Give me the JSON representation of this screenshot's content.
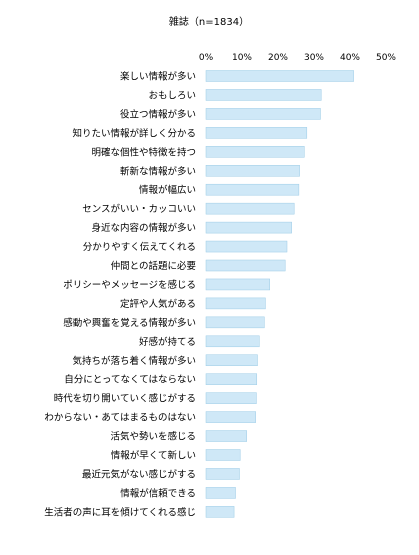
{
  "chart_data": {
    "type": "bar",
    "orientation": "horizontal",
    "title": "雑誌（n=1834）",
    "xlabel": "",
    "ylabel": "",
    "xlim": [
      0,
      50
    ],
    "tick_labels": [
      "0%",
      "10%",
      "20%",
      "30%",
      "40%",
      "50%"
    ],
    "grid": false,
    "legend": "none",
    "bar_color": "#cfe8f7",
    "bar_edge_color": "#9ccbe6",
    "categories": [
      "楽しい情報が多い",
      "おもしろい",
      "役立つ情報が多い",
      "知りたい情報が詳しく分かる",
      "明確な個性や特徴を持つ",
      "斬新な情報が多い",
      "情報が幅広い",
      "センスがいい・カッコいい",
      "身近な内容の情報が多い",
      "分かりやすく伝えてくれる",
      "仲間との話題に必要",
      "ポリシーやメッセージを感じる",
      "定評や人気がある",
      "感動や興奮を覚える情報が多い",
      "好感が持てる",
      "気持ちが落ち着く情報が多い",
      "自分にとってなくてはならない",
      "時代を切り開いていく感じがする",
      "わからない・あてはまるものはない",
      "活気や勢いを感じる",
      "情報が早くて新しい",
      "最近元気がない感じがする",
      "情報が信頼できる",
      "生活者の声に耳を傾けてくれる感じ"
    ],
    "values": [
      41.0,
      32.0,
      31.8,
      28.0,
      27.3,
      26.0,
      25.8,
      24.5,
      23.8,
      22.5,
      22.0,
      17.7,
      16.5,
      16.2,
      14.8,
      14.3,
      14.1,
      14.0,
      13.8,
      11.3,
      9.5,
      9.3,
      8.2,
      7.8
    ]
  }
}
